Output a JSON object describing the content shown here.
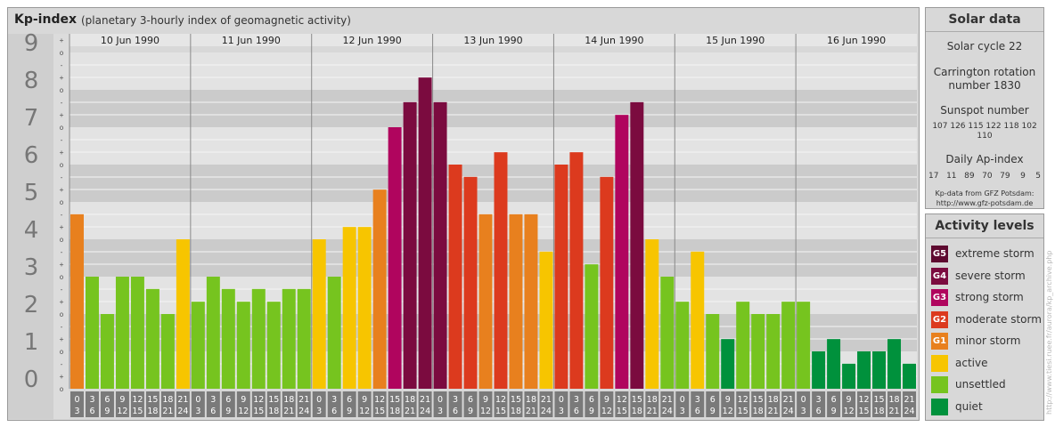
{
  "title": "Kp-index",
  "subtitle": "(planetary 3-hourly index of geomagnetic activity)",
  "colors": {
    "quiet": "#00913c",
    "unsettled": "#76c41f",
    "active": "#f7c500",
    "G1": "#e8801e",
    "G2": "#dc3a1e",
    "G3": "#b0055e",
    "G4": "#7b0b3f",
    "G5": "#5e0a30"
  },
  "chart_data": {
    "type": "bar",
    "ylim": [
      0,
      9
    ],
    "yticks": [
      "0",
      "1",
      "2",
      "3",
      "4",
      "5",
      "6",
      "7",
      "8",
      "9"
    ],
    "sub_marks": [
      "-",
      "o",
      "+"
    ],
    "days": [
      "10 Jun 1990",
      "11 Jun 1990",
      "12 Jun 1990",
      "13 Jun 1990",
      "14 Jun 1990",
      "15 Jun 1990",
      "16 Jun 1990"
    ],
    "slots": [
      [
        "0",
        "3"
      ],
      [
        "3",
        "6"
      ],
      [
        "6",
        "9"
      ],
      [
        "9",
        "12"
      ],
      [
        "12",
        "15"
      ],
      [
        "15",
        "18"
      ],
      [
        "18",
        "21"
      ],
      [
        "21",
        "24"
      ]
    ],
    "values": [
      [
        4.67,
        3.0,
        2.0,
        3.0,
        3.0,
        2.67,
        2.0,
        4.0
      ],
      [
        2.33,
        3.0,
        2.67,
        2.33,
        2.67,
        2.33,
        2.67,
        2.67
      ],
      [
        4.0,
        3.0,
        4.33,
        4.33,
        5.33,
        7.0,
        7.67,
        8.33
      ],
      [
        7.67,
        6.0,
        5.67,
        4.67,
        6.33,
        4.67,
        4.67,
        3.67
      ],
      [
        6.0,
        6.33,
        3.33,
        5.67,
        7.33,
        7.67,
        4.0,
        3.0
      ],
      [
        2.33,
        3.67,
        2.0,
        1.33,
        2.33,
        2.0,
        2.0,
        2.33
      ],
      [
        2.33,
        1.0,
        1.33,
        0.67,
        1.0,
        1.0,
        1.33,
        0.67
      ]
    ]
  },
  "solar_data": {
    "heading": "Solar data",
    "cycle": "Solar cycle 22",
    "carrington_line1": "Carrington rotation",
    "carrington_line2": "number 1830",
    "sunspot_heading": "Sunspot number",
    "sunspot_values": "107 126 115 122 118 102 110",
    "ap_heading": "Daily Ap-index",
    "ap_values": "17   11   89   70   79    9    5",
    "source_line1": "Kp-data from GFZ Potsdam:",
    "source_line2": "http://www.gfz-potsdam.de"
  },
  "activity_levels": {
    "heading": "Activity levels",
    "items": [
      {
        "code": "G5",
        "label": "extreme storm",
        "color": "#5e0a30"
      },
      {
        "code": "G4",
        "label": "severe storm",
        "color": "#7b0b3f"
      },
      {
        "code": "G3",
        "label": "strong storm",
        "color": "#b0055e"
      },
      {
        "code": "G2",
        "label": "moderate storm",
        "color": "#dc3a1e"
      },
      {
        "code": "G1",
        "label": "minor storm",
        "color": "#e8801e"
      },
      {
        "code": "",
        "label": "active",
        "color": "#f7c500"
      },
      {
        "code": "",
        "label": "unsettled",
        "color": "#76c41f"
      },
      {
        "code": "",
        "label": "quiet",
        "color": "#00913c"
      }
    ]
  },
  "watermark": "http://www.tiesi.ruee.fr/aurora/kp_archive.php"
}
